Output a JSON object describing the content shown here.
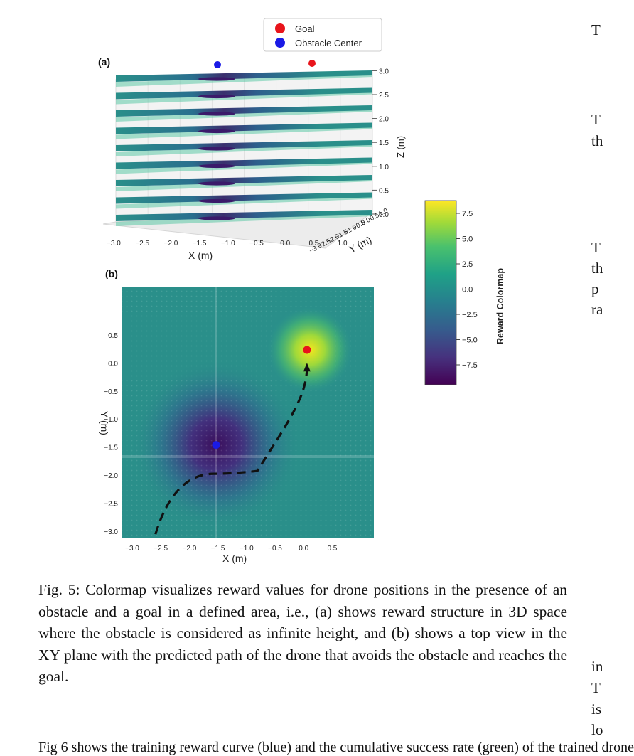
{
  "figure": {
    "panel_a_label": "(a)",
    "panel_b_label": "(b)",
    "legend": {
      "goal": {
        "label": "Goal",
        "color": "#e8141b"
      },
      "obstacle": {
        "label": "Obstacle Center",
        "color": "#1a1ae6"
      }
    },
    "colorbar": {
      "label": "Reward Colormap",
      "ticks": [
        "7.5",
        "5.0",
        "2.5",
        "0.0",
        "−2.5",
        "−5.0",
        "−7.5"
      ],
      "colormap": "viridis"
    }
  },
  "chart_data": [
    {
      "type": "surface-3d",
      "panel": "(a)",
      "xlabel": "X (m)",
      "ylabel": "Y (m)",
      "zlabel": "Z (m)",
      "x_ticks": [
        "−3.0",
        "−2.5",
        "−2.0",
        "−1.5",
        "−1.0",
        "−0.5",
        "0.0",
        "0.5",
        "1.0"
      ],
      "y_ticks": [
        "−3.0",
        "−2.5",
        "−2.0",
        "−1.5",
        "−1.0",
        "−0.5",
        "0.0",
        "0.5",
        "1.0"
      ],
      "z_ticks": [
        "0.0",
        "0.5",
        "1.0",
        "1.5",
        "2.0",
        "2.5",
        "3.0"
      ],
      "num_layers": 9
    },
    {
      "type": "heatmap",
      "panel": "(b)",
      "xlabel": "X (m)",
      "ylabel": "Y (m)",
      "x_ticks": [
        "−3.0",
        "−2.5",
        "−2.0",
        "−1.5",
        "−1.0",
        "−0.5",
        "0.0",
        "0.5"
      ],
      "y_ticks": [
        "0.5",
        "0.0",
        "−0.5",
        "−1.0",
        "−1.5",
        "−2.0",
        "−2.5",
        "−3.0"
      ],
      "xlim": [
        -3.3,
        1.2
      ],
      "ylim": [
        -3.1,
        1.3
      ],
      "goal": {
        "x": 0.1,
        "y": 0.2
      },
      "obstacle_center": {
        "x": -1.55,
        "y": -1.45
      },
      "path": [
        [
          -2.65,
          -3.0
        ],
        [
          -2.4,
          -2.2
        ],
        [
          -1.6,
          -1.95
        ],
        [
          -0.8,
          -1.9
        ],
        [
          -0.2,
          -1.2
        ],
        [
          0.1,
          0.0
        ]
      ]
    }
  ],
  "caption": "Fig. 5: Colormap visualizes reward values for drone positions in the presence of an obstacle and a goal in a defined area, i.e., (a) shows reward structure in 3D space where the obstacle is considered as infinite height, and (b) shows a top view in the XY plane with the predicted path of the drone that avoids the obstacle and reaches the goal.",
  "right_column": [
    "T",
    "T",
    "th",
    "T",
    "th",
    "p",
    "ra",
    "in",
    "T",
    "is",
    "lo"
  ],
  "next_paragraph_fragment": "Fig 6 shows the training reward curve (blue) and the cumulative success rate (green) of the trained drone"
}
